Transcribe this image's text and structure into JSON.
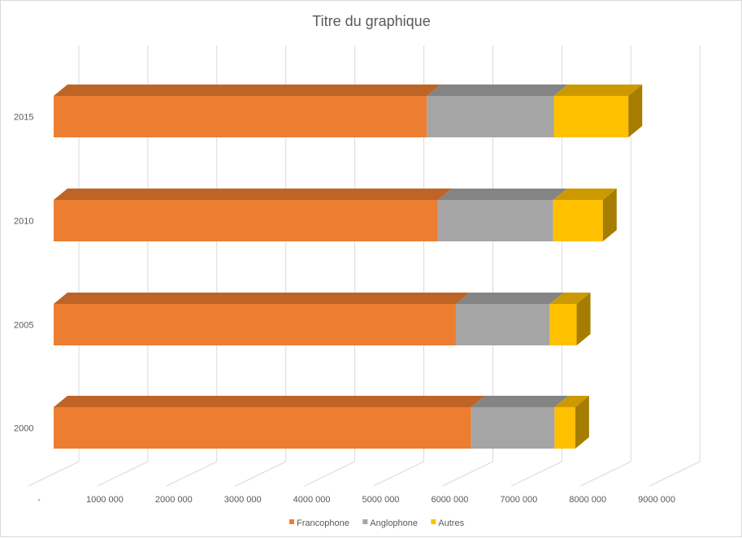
{
  "chart_data": {
    "type": "bar",
    "orientation": "horizontal",
    "stacked": true,
    "style": "3d",
    "title": "Titre du graphique",
    "categories": [
      "2000",
      "2005",
      "2010",
      "2015"
    ],
    "x_tick_labels": [
      "-",
      "1000 000",
      "2000 000",
      "3000 000",
      "4000 000",
      "5000 000",
      "6000 000",
      "7000 000",
      "8000 000",
      "9000 000"
    ],
    "xlim": [
      0,
      9000000
    ],
    "grid": true,
    "legend_position": "bottom",
    "series": [
      {
        "name": "Francophone",
        "color": "#ED7D31",
        "values": [
          6050000,
          5830000,
          5570000,
          5410000
        ]
      },
      {
        "name": "Anglophone",
        "color": "#A5A5A5",
        "values": [
          1210000,
          1360000,
          1670000,
          1840000
        ]
      },
      {
        "name": "Autres",
        "color": "#FFC000",
        "values": [
          300000,
          390000,
          720000,
          1080000
        ]
      }
    ]
  }
}
